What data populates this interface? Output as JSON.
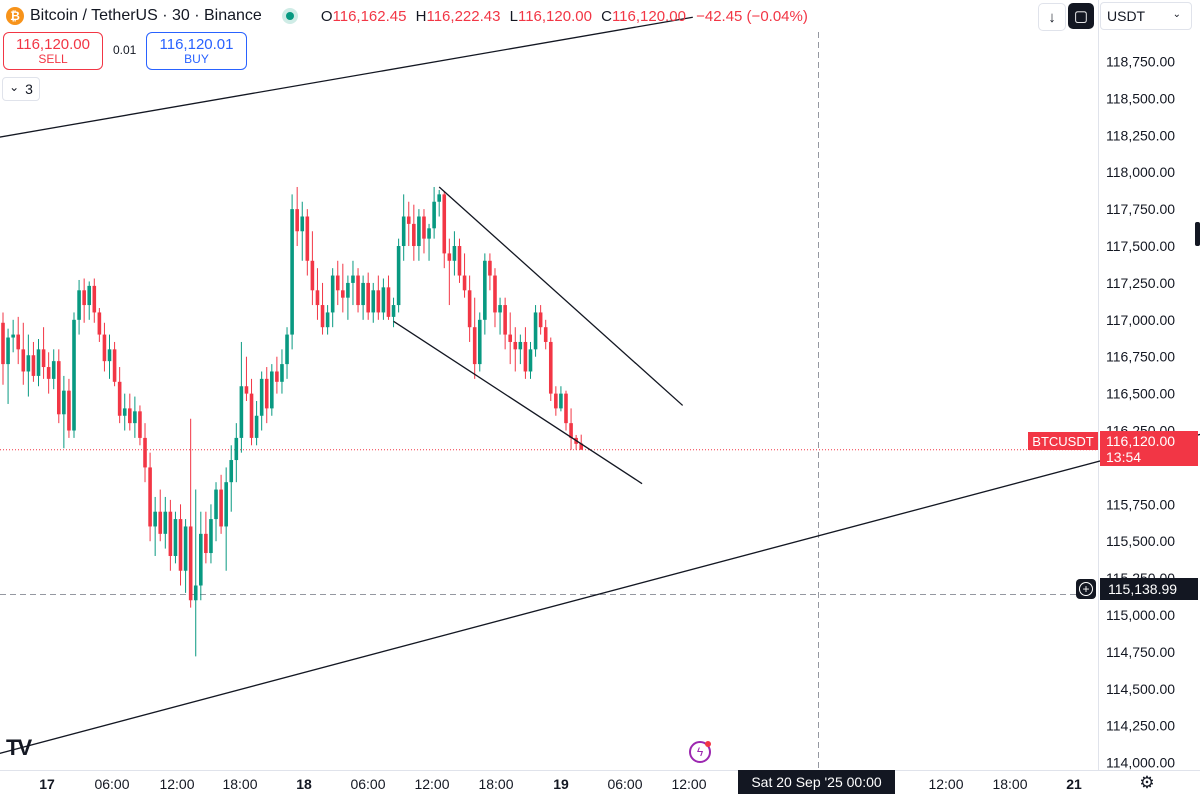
{
  "header": {
    "coin_glyph": "₿",
    "symbol_title": "Bitcoin / TetherUS · 30 · Binance",
    "market_status_color": "#089981",
    "ohlc": [
      {
        "key": "O",
        "value": "116,162.45"
      },
      {
        "key": "H",
        "value": "116,222.43"
      },
      {
        "key": "L",
        "value": "116,120.00"
      },
      {
        "key": "C",
        "value": "116,120.00"
      }
    ],
    "change": "−42.45 (−0.04%)"
  },
  "trade": {
    "sell_price": "116,120.00",
    "sell_label": "SELL",
    "spread": "0.01",
    "buy_price": "116,120.01",
    "buy_label": "BUY"
  },
  "indicators": {
    "chevron": "⌄",
    "count": "3"
  },
  "toolbar": {
    "download_icon": "↓",
    "snapshot_icon": "▢"
  },
  "currency": {
    "label": "USDT",
    "chevron_icon": "⌄"
  },
  "price_axis": {
    "labels": [
      "118,750.00",
      "118,500.00",
      "118,250.00",
      "118,000.00",
      "117,750.00",
      "117,500.00",
      "117,250.00",
      "117,000.00",
      "116,750.00",
      "116,500.00",
      "116,250.00",
      "115,750.00",
      "115,500.00",
      "115,250.00",
      "115,000.00",
      "114,750.00",
      "114,500.00",
      "114,250.00",
      "114,000.00"
    ]
  },
  "last_price": {
    "symbol": "BTCUSDT",
    "value": "116,120.00",
    "countdown": "13:54"
  },
  "crosshair": {
    "price": "115,138.99",
    "date": "Sat 20 Sep '25   00:00",
    "add_icon": "+"
  },
  "time_axis": {
    "labels": [
      "17",
      "06:00",
      "12:00",
      "18:00",
      "18",
      "06:00",
      "12:00",
      "18:00",
      "19",
      "06:00",
      "12:00",
      "",
      "",
      "12:00",
      "18:00",
      "21"
    ],
    "bold": [
      "17",
      "18",
      "19",
      "21"
    ]
  },
  "branding": {
    "logo": "TV"
  },
  "icons": {
    "bolt": "ϟ",
    "settings": "⚙"
  },
  "chart_data": {
    "type": "candlestick",
    "symbol": "BTCUSDT",
    "interval": "30",
    "ylim": [
      113950,
      118950
    ],
    "colors": {
      "up": "#089981",
      "down": "#f23645"
    },
    "candles": [
      {
        "o": 116980,
        "h": 117050,
        "l": 116560,
        "c": 116700
      },
      {
        "o": 116700,
        "h": 116940,
        "l": 116430,
        "c": 116880
      },
      {
        "o": 116880,
        "h": 117000,
        "l": 116780,
        "c": 116900
      },
      {
        "o": 116900,
        "h": 117020,
        "l": 116700,
        "c": 116800
      },
      {
        "o": 116800,
        "h": 116980,
        "l": 116560,
        "c": 116650
      },
      {
        "o": 116650,
        "h": 116900,
        "l": 116480,
        "c": 116760
      },
      {
        "o": 116760,
        "h": 116850,
        "l": 116580,
        "c": 116620
      },
      {
        "o": 116620,
        "h": 116870,
        "l": 116550,
        "c": 116800
      },
      {
        "o": 116800,
        "h": 116950,
        "l": 116600,
        "c": 116680
      },
      {
        "o": 116680,
        "h": 116780,
        "l": 116500,
        "c": 116600
      },
      {
        "o": 116600,
        "h": 116800,
        "l": 116530,
        "c": 116720
      },
      {
        "o": 116720,
        "h": 116800,
        "l": 116300,
        "c": 116360
      },
      {
        "o": 116360,
        "h": 116620,
        "l": 116130,
        "c": 116520
      },
      {
        "o": 116520,
        "h": 116600,
        "l": 116200,
        "c": 116250
      },
      {
        "o": 116250,
        "h": 117050,
        "l": 116200,
        "c": 117000
      },
      {
        "o": 117000,
        "h": 117270,
        "l": 116900,
        "c": 117200
      },
      {
        "o": 117200,
        "h": 117280,
        "l": 116980,
        "c": 117100
      },
      {
        "o": 117100,
        "h": 117260,
        "l": 117000,
        "c": 117230
      },
      {
        "o": 117230,
        "h": 117280,
        "l": 116980,
        "c": 117050
      },
      {
        "o": 117050,
        "h": 117080,
        "l": 116850,
        "c": 116900
      },
      {
        "o": 116900,
        "h": 116980,
        "l": 116650,
        "c": 116720
      },
      {
        "o": 116720,
        "h": 116900,
        "l": 116600,
        "c": 116800
      },
      {
        "o": 116800,
        "h": 116850,
        "l": 116550,
        "c": 116580
      },
      {
        "o": 116580,
        "h": 116680,
        "l": 116300,
        "c": 116350
      },
      {
        "o": 116350,
        "h": 116500,
        "l": 116250,
        "c": 116400
      },
      {
        "o": 116400,
        "h": 116500,
        "l": 116250,
        "c": 116300
      },
      {
        "o": 116300,
        "h": 116480,
        "l": 116200,
        "c": 116380
      },
      {
        "o": 116380,
        "h": 116420,
        "l": 116150,
        "c": 116200
      },
      {
        "o": 116200,
        "h": 116300,
        "l": 115900,
        "c": 116000
      },
      {
        "o": 116000,
        "h": 116100,
        "l": 115500,
        "c": 115600
      },
      {
        "o": 115600,
        "h": 115800,
        "l": 115400,
        "c": 115700
      },
      {
        "o": 115700,
        "h": 115850,
        "l": 115500,
        "c": 115550
      },
      {
        "o": 115550,
        "h": 115800,
        "l": 115450,
        "c": 115700
      },
      {
        "o": 115700,
        "h": 115780,
        "l": 115300,
        "c": 115400
      },
      {
        "o": 115400,
        "h": 115700,
        "l": 115350,
        "c": 115650
      },
      {
        "o": 115650,
        "h": 115750,
        "l": 115200,
        "c": 115300
      },
      {
        "o": 115300,
        "h": 115650,
        "l": 115150,
        "c": 115600
      },
      {
        "o": 115600,
        "h": 116330,
        "l": 115050,
        "c": 115100
      },
      {
        "o": 115100,
        "h": 115850,
        "l": 114720,
        "c": 115200
      },
      {
        "o": 115200,
        "h": 115700,
        "l": 115100,
        "c": 115550
      },
      {
        "o": 115550,
        "h": 115700,
        "l": 115350,
        "c": 115420
      },
      {
        "o": 115420,
        "h": 115750,
        "l": 115350,
        "c": 115650
      },
      {
        "o": 115650,
        "h": 115900,
        "l": 115500,
        "c": 115850
      },
      {
        "o": 115850,
        "h": 115950,
        "l": 115550,
        "c": 115600
      },
      {
        "o": 115600,
        "h": 116000,
        "l": 115300,
        "c": 115900
      },
      {
        "o": 115900,
        "h": 116150,
        "l": 115700,
        "c": 116050
      },
      {
        "o": 116050,
        "h": 116300,
        "l": 115900,
        "c": 116200
      },
      {
        "o": 116200,
        "h": 116850,
        "l": 116100,
        "c": 116550
      },
      {
        "o": 116550,
        "h": 116750,
        "l": 116450,
        "c": 116500
      },
      {
        "o": 116500,
        "h": 116600,
        "l": 116150,
        "c": 116200
      },
      {
        "o": 116200,
        "h": 116450,
        "l": 116150,
        "c": 116350
      },
      {
        "o": 116350,
        "h": 116650,
        "l": 116250,
        "c": 116600
      },
      {
        "o": 116600,
        "h": 116680,
        "l": 116300,
        "c": 116400
      },
      {
        "o": 116400,
        "h": 116700,
        "l": 116350,
        "c": 116650
      },
      {
        "o": 116650,
        "h": 116750,
        "l": 116500,
        "c": 116580
      },
      {
        "o": 116580,
        "h": 116800,
        "l": 116500,
        "c": 116700
      },
      {
        "o": 116700,
        "h": 116950,
        "l": 116600,
        "c": 116900
      },
      {
        "o": 116900,
        "h": 117850,
        "l": 116800,
        "c": 117750
      },
      {
        "o": 117750,
        "h": 117900,
        "l": 117500,
        "c": 117600
      },
      {
        "o": 117600,
        "h": 117800,
        "l": 117400,
        "c": 117700
      },
      {
        "o": 117700,
        "h": 117750,
        "l": 117300,
        "c": 117400
      },
      {
        "o": 117400,
        "h": 117600,
        "l": 117100,
        "c": 117200
      },
      {
        "o": 117200,
        "h": 117350,
        "l": 117000,
        "c": 117100
      },
      {
        "o": 117100,
        "h": 117250,
        "l": 116900,
        "c": 116950
      },
      {
        "o": 116950,
        "h": 117100,
        "l": 116900,
        "c": 117050
      },
      {
        "o": 117050,
        "h": 117350,
        "l": 116950,
        "c": 117300
      },
      {
        "o": 117300,
        "h": 117400,
        "l": 117100,
        "c": 117200
      },
      {
        "o": 117200,
        "h": 117380,
        "l": 117050,
        "c": 117150
      },
      {
        "o": 117150,
        "h": 117300,
        "l": 117000,
        "c": 117250
      },
      {
        "o": 117250,
        "h": 117400,
        "l": 117100,
        "c": 117300
      },
      {
        "o": 117300,
        "h": 117350,
        "l": 117050,
        "c": 117100
      },
      {
        "o": 117100,
        "h": 117300,
        "l": 117000,
        "c": 117250
      },
      {
        "o": 117250,
        "h": 117320,
        "l": 117000,
        "c": 117050
      },
      {
        "o": 117050,
        "h": 117250,
        "l": 116980,
        "c": 117200
      },
      {
        "o": 117200,
        "h": 117300,
        "l": 117000,
        "c": 117050
      },
      {
        "o": 117050,
        "h": 117280,
        "l": 117000,
        "c": 117220
      },
      {
        "o": 117220,
        "h": 117300,
        "l": 117000,
        "c": 117020
      },
      {
        "o": 117020,
        "h": 117150,
        "l": 116950,
        "c": 117100
      },
      {
        "o": 117100,
        "h": 117550,
        "l": 117050,
        "c": 117500
      },
      {
        "o": 117500,
        "h": 117850,
        "l": 117400,
        "c": 117700
      },
      {
        "o": 117700,
        "h": 117800,
        "l": 117500,
        "c": 117650
      },
      {
        "o": 117650,
        "h": 117780,
        "l": 117400,
        "c": 117500
      },
      {
        "o": 117500,
        "h": 117750,
        "l": 117400,
        "c": 117700
      },
      {
        "o": 117700,
        "h": 117750,
        "l": 117450,
        "c": 117550
      },
      {
        "o": 117550,
        "h": 117650,
        "l": 117400,
        "c": 117620
      },
      {
        "o": 117620,
        "h": 117900,
        "l": 117550,
        "c": 117800
      },
      {
        "o": 117800,
        "h": 117880,
        "l": 117700,
        "c": 117850
      },
      {
        "o": 117850,
        "h": 117870,
        "l": 117350,
        "c": 117450
      },
      {
        "o": 117450,
        "h": 117550,
        "l": 117100,
        "c": 117400
      },
      {
        "o": 117400,
        "h": 117600,
        "l": 117300,
        "c": 117500
      },
      {
        "o": 117500,
        "h": 117550,
        "l": 117250,
        "c": 117300
      },
      {
        "o": 117300,
        "h": 117450,
        "l": 117150,
        "c": 117200
      },
      {
        "o": 117200,
        "h": 117300,
        "l": 116850,
        "c": 116950
      },
      {
        "o": 116950,
        "h": 117150,
        "l": 116600,
        "c": 116700
      },
      {
        "o": 116700,
        "h": 117050,
        "l": 116650,
        "c": 117000
      },
      {
        "o": 117000,
        "h": 117450,
        "l": 116900,
        "c": 117400
      },
      {
        "o": 117400,
        "h": 117450,
        "l": 117200,
        "c": 117300
      },
      {
        "o": 117300,
        "h": 117350,
        "l": 116950,
        "c": 117050
      },
      {
        "o": 117050,
        "h": 117150,
        "l": 116900,
        "c": 117100
      },
      {
        "o": 117100,
        "h": 117150,
        "l": 116800,
        "c": 116900
      },
      {
        "o": 116900,
        "h": 117050,
        "l": 116700,
        "c": 116850
      },
      {
        "o": 116850,
        "h": 116950,
        "l": 116650,
        "c": 116800
      },
      {
        "o": 116800,
        "h": 116900,
        "l": 116700,
        "c": 116850
      },
      {
        "o": 116850,
        "h": 116950,
        "l": 116600,
        "c": 116650
      },
      {
        "o": 116650,
        "h": 116850,
        "l": 116600,
        "c": 116800
      },
      {
        "o": 116800,
        "h": 117100,
        "l": 116750,
        "c": 117050
      },
      {
        "o": 117050,
        "h": 117100,
        "l": 116900,
        "c": 116950
      },
      {
        "o": 116950,
        "h": 117000,
        "l": 116800,
        "c": 116850
      },
      {
        "o": 116850,
        "h": 116880,
        "l": 116450,
        "c": 116500
      },
      {
        "o": 116500,
        "h": 116550,
        "l": 116350,
        "c": 116400
      },
      {
        "o": 116400,
        "h": 116550,
        "l": 116380,
        "c": 116500
      },
      {
        "o": 116500,
        "h": 116520,
        "l": 116250,
        "c": 116300
      },
      {
        "o": 116300,
        "h": 116400,
        "l": 116120,
        "c": 116200
      },
      {
        "o": 116200,
        "h": 116220,
        "l": 116120,
        "c": 116160
      },
      {
        "o": 116162,
        "h": 116222,
        "l": 116120,
        "c": 116120
      }
    ],
    "trendlines": [
      {
        "name": "upper-channel-top",
        "p1": {
          "bar": -2,
          "price": 118230
        },
        "p2": {
          "bar": 136,
          "price": 119050
        }
      },
      {
        "name": "rising-support",
        "p1": {
          "bar": -2,
          "price": 114050
        },
        "p2": {
          "bar": 240,
          "price": 116260
        }
      },
      {
        "name": "falling-wedge-upper",
        "p1": {
          "bar": 86,
          "price": 117900
        },
        "p2": {
          "bar": 134,
          "price": 116420
        }
      },
      {
        "name": "falling-wedge-lower",
        "p1": {
          "bar": 77,
          "price": 116990
        },
        "p2": {
          "bar": 126,
          "price": 115890
        }
      }
    ],
    "horizontal_lines": [
      {
        "name": "last-price-line",
        "price": 116120,
        "color": "#f23645"
      },
      {
        "name": "crosshair-horizontal",
        "price": 115138.99,
        "color": "#9598a1"
      }
    ],
    "crosshair_time": "Sat 20 Sep '25 00:00"
  }
}
